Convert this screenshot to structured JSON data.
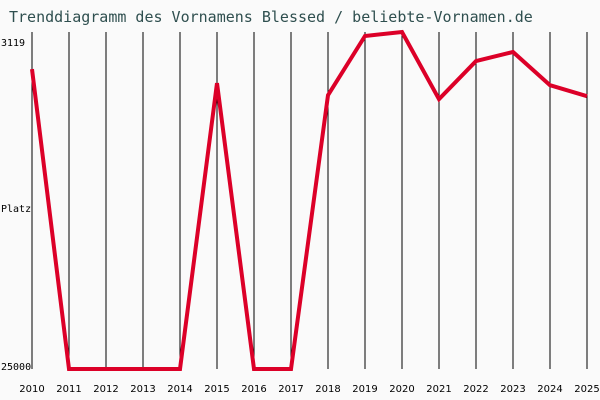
{
  "title": "Trenddiagramm des Vornamens Blessed / beliebte-Vornamen.de",
  "chart_data": {
    "type": "line",
    "title": "Trenddiagramm des Vornamens Blessed / beliebte-Vornamen.de",
    "xlabel": "",
    "ylabel": "Platz",
    "y_inverted": true,
    "ylim": [
      3119,
      25000
    ],
    "y_ticks": [
      "3119",
      "Platz",
      "25000"
    ],
    "categories": [
      "2010",
      "2011",
      "2012",
      "2013",
      "2014",
      "2015",
      "2016",
      "2017",
      "2018",
      "2019",
      "2020",
      "2021",
      "2022",
      "2023",
      "2024",
      "2025"
    ],
    "series": [
      {
        "name": "Blessed",
        "color": "#dc0028",
        "values": [
          5530,
          25000,
          25000,
          25000,
          25000,
          6440,
          25000,
          25000,
          7220,
          3380,
          3119,
          7480,
          5010,
          4420,
          6570,
          7290
        ]
      }
    ],
    "grid": "vertical",
    "legend": "none"
  }
}
